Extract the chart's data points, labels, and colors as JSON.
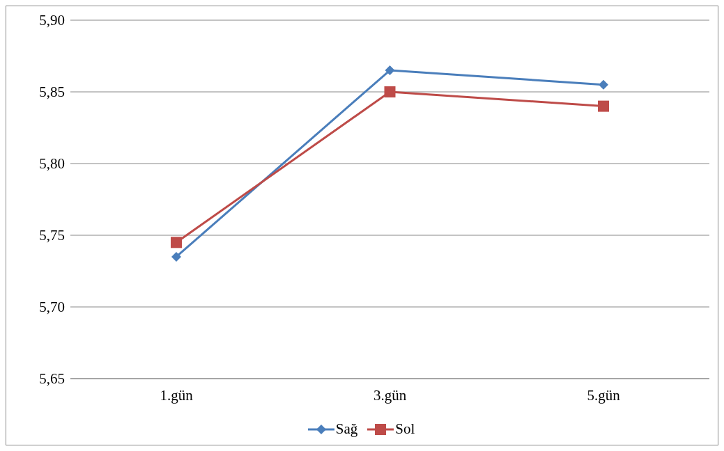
{
  "chart_data": {
    "type": "line",
    "categories": [
      "1.gün",
      "3.gün",
      "5.gün"
    ],
    "series": [
      {
        "name": "Sağ",
        "color": "#4a7ebb",
        "values": [
          5.735,
          5.865,
          5.855
        ],
        "marker": "diamond"
      },
      {
        "name": "Sol",
        "color": "#be4b48",
        "values": [
          5.745,
          5.85,
          5.84
        ],
        "marker": "square"
      }
    ],
    "ylim": [
      5.65,
      5.9
    ],
    "yticks": [
      {
        "value": 5.65,
        "label": "5,65"
      },
      {
        "value": 5.7,
        "label": "5,70"
      },
      {
        "value": 5.75,
        "label": "5,75"
      },
      {
        "value": 5.8,
        "label": "5,80"
      },
      {
        "value": 5.85,
        "label": "5,85"
      },
      {
        "value": 5.9,
        "label": "5,90"
      }
    ],
    "grid": "y",
    "legend": "bottom",
    "line_style": "solid"
  }
}
